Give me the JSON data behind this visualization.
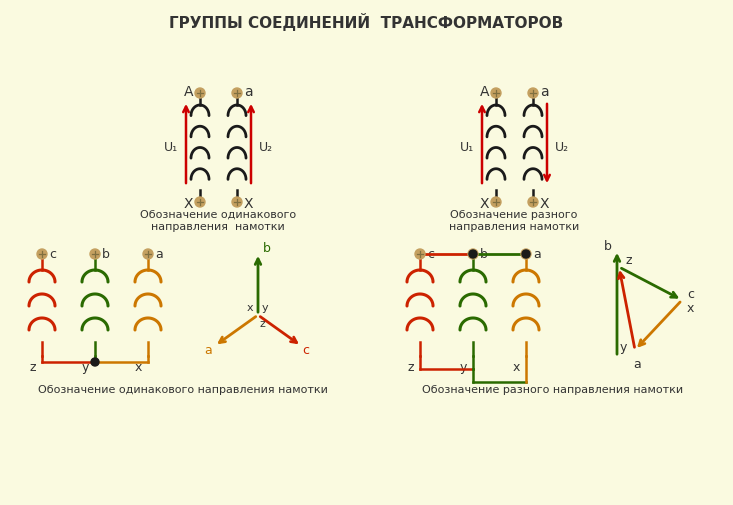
{
  "title": "ГРУППЫ СОЕДИНЕНИЙ  ТРАНСФОРМАТОРОВ",
  "bg_color": "#FAFAE0",
  "label_same1": "Обозначение одинакового\nнаправления  намотки",
  "label_diff1": "Обозначение разного\nнаправления намотки",
  "label_same2": "Обозначение одинакового направления намотки",
  "label_diff2": "Обозначение разного направления намотки",
  "red": "#CC2200",
  "green": "#2A6A00",
  "orange": "#CC7700",
  "black": "#1A1A1A",
  "arrowred": "#CC0000",
  "term": "#C4A060"
}
